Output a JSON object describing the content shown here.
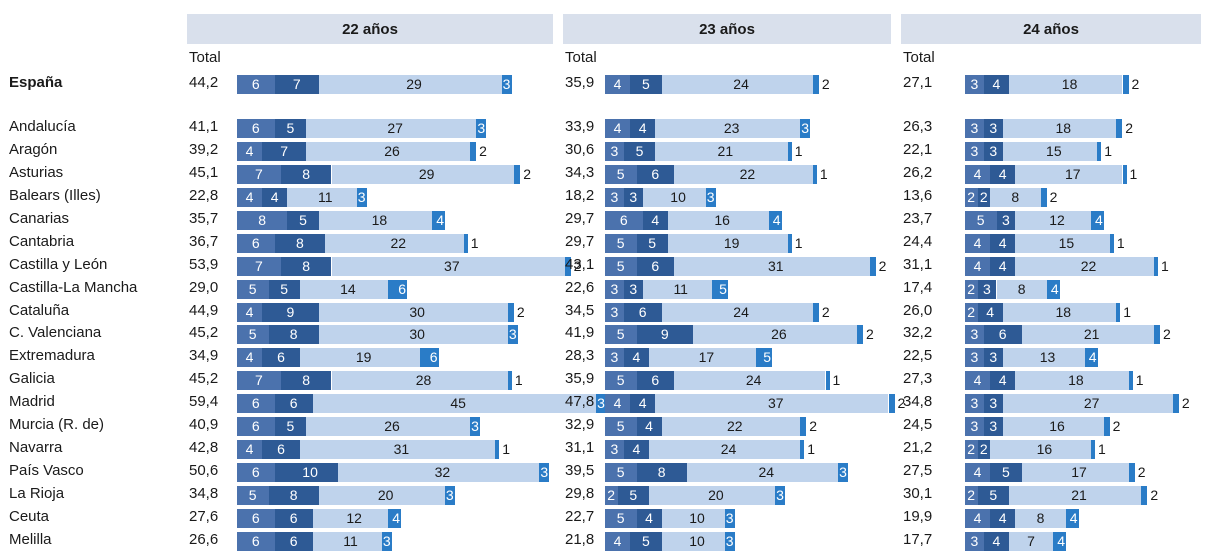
{
  "chart_data": {
    "type": "bar",
    "orientation": "horizontal-stacked",
    "column_header": "Total",
    "colors": {
      "segment_1": "#4b72ad",
      "segment_2": "#2e5a95",
      "segment_3": "#bfd3ec",
      "segment_4": "#2a7cc7",
      "header_background": "#d9e0ec"
    },
    "categories": [
      "España",
      "Andalucía",
      "Aragón",
      "Asturias",
      "Balears (Illes)",
      "Canarias",
      "Cantabria",
      "Castilla y León",
      "Castilla-La Mancha",
      "Cataluña",
      "C. Valenciana",
      "Extremadura",
      "Galicia",
      "Madrid",
      "Murcia (R. de)",
      "Navarra",
      "País Vasco",
      "La Rioja",
      "Ceuta",
      "Melilla"
    ],
    "panels": [
      {
        "title": "22 años",
        "totals": [
          "44,2",
          "41,1",
          "39,2",
          "45,1",
          "22,8",
          "35,7",
          "36,7",
          "53,9",
          "29,0",
          "44,9",
          "45,2",
          "34,9",
          "45,2",
          "59,4",
          "40,9",
          "42,8",
          "50,6",
          "34,8",
          "27,6",
          "26,6"
        ],
        "series": [
          {
            "values": [
              6,
              6,
              4,
              7,
              4,
              8,
              6,
              7,
              5,
              4,
              5,
              4,
              7,
              6,
              6,
              4,
              6,
              5,
              6,
              6
            ]
          },
          {
            "values": [
              7,
              5,
              7,
              8,
              4,
              5,
              8,
              8,
              5,
              9,
              8,
              6,
              8,
              6,
              5,
              6,
              10,
              8,
              6,
              6
            ]
          },
          {
            "values": [
              29,
              27,
              26,
              29,
              11,
              18,
              22,
              37,
              14,
              30,
              30,
              19,
              28,
              45,
              26,
              31,
              32,
              20,
              12,
              11
            ]
          },
          {
            "values": [
              3,
              3,
              2,
              2,
              3,
              4,
              1,
              2,
              6,
              2,
              3,
              6,
              1,
              3,
              3,
              1,
              3,
              3,
              4,
              3
            ]
          }
        ]
      },
      {
        "title": "23 años",
        "totals": [
          "35,9",
          "33,9",
          "30,6",
          "34,3",
          "18,2",
          "29,7",
          "29,7",
          "43,1",
          "22,6",
          "34,5",
          "41,9",
          "28,3",
          "35,9",
          "47,8",
          "32,9",
          "31,1",
          "39,5",
          "29,8",
          "22,7",
          "21,8"
        ],
        "series": [
          {
            "values": [
              4,
              4,
              3,
              5,
              3,
              6,
              5,
              5,
              3,
              3,
              5,
              3,
              5,
              4,
              5,
              3,
              5,
              2,
              5,
              4
            ]
          },
          {
            "values": [
              5,
              4,
              5,
              6,
              3,
              4,
              5,
              6,
              3,
              6,
              9,
              4,
              6,
              4,
              4,
              4,
              8,
              5,
              4,
              5
            ]
          },
          {
            "values": [
              24,
              23,
              21,
              22,
              10,
              16,
              19,
              31,
              11,
              24,
              26,
              17,
              24,
              37,
              22,
              24,
              24,
              20,
              10,
              10
            ]
          },
          {
            "values": [
              2,
              3,
              1,
              1,
              3,
              4,
              1,
              2,
              5,
              2,
              2,
              5,
              1,
              2,
              2,
              1,
              3,
              3,
              3,
              3
            ]
          }
        ]
      },
      {
        "title": "24 años",
        "totals": [
          "27,1",
          "26,3",
          "22,1",
          "26,2",
          "13,6",
          "23,7",
          "24,4",
          "31,1",
          "17,4",
          "26,0",
          "32,2",
          "22,5",
          "27,3",
          "34,8",
          "24,5",
          "21,2",
          "27,5",
          "30,1",
          "19,9",
          "17,7"
        ],
        "series": [
          {
            "values": [
              3,
              3,
              3,
              4,
              2,
              5,
              4,
              4,
              2,
              2,
              3,
              3,
              4,
              3,
              3,
              2,
              4,
              2,
              4,
              3
            ]
          },
          {
            "values": [
              4,
              3,
              3,
              4,
              2,
              3,
              4,
              4,
              3,
              4,
              6,
              3,
              4,
              3,
              3,
              2,
              5,
              5,
              4,
              4
            ]
          },
          {
            "values": [
              18,
              18,
              15,
              17,
              8,
              12,
              15,
              22,
              8,
              18,
              21,
              13,
              18,
              27,
              16,
              16,
              17,
              21,
              8,
              7
            ]
          },
          {
            "values": [
              2,
              2,
              1,
              1,
              2,
              4,
              1,
              1,
              4,
              1,
              2,
              4,
              1,
              2,
              2,
              1,
              2,
              2,
              4,
              4
            ]
          }
        ]
      }
    ]
  }
}
